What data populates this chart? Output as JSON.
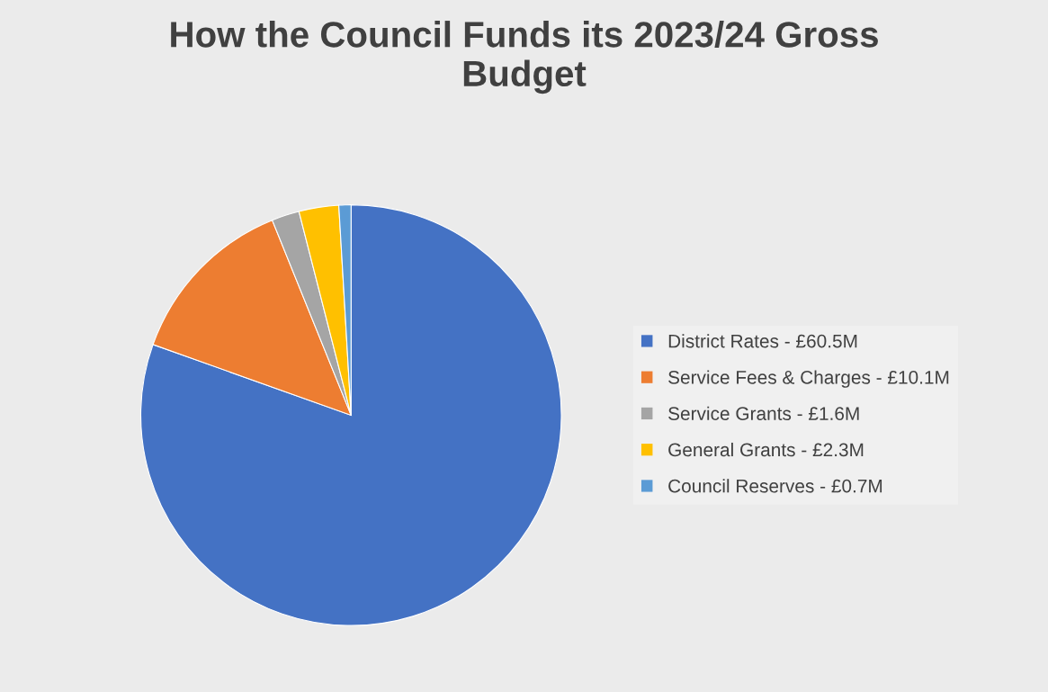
{
  "chart_data": {
    "type": "pie",
    "title": "How the Council Funds its 2023/24 Gross Budget",
    "categories": [
      "District Rates -",
      "Service Fees & Charges -",
      "Service Grants -",
      "General Grants -",
      "Council Reserves -"
    ],
    "value_labels": [
      "£60.5M",
      "£10.1M",
      "£1.6M",
      "£2.3M",
      "£0.7M"
    ],
    "values": [
      60.5,
      10.1,
      1.6,
      2.3,
      0.7
    ],
    "colors": [
      "#4472c4",
      "#ed7d31",
      "#a5a5a5",
      "#ffc000",
      "#5b9bd5"
    ],
    "legend": "right"
  }
}
